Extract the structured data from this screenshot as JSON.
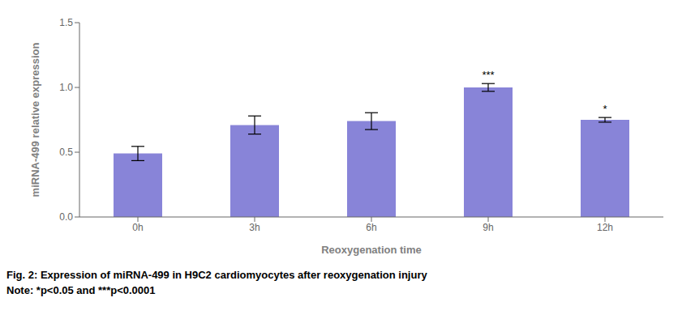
{
  "chart_data": {
    "type": "bar",
    "title": "Fig. 2: Expression of miRNA-499 in H9C2 cardiomyocytes after reoxygenation injury",
    "subtitle": "Note: *p<0.05 and ***p<0.0001",
    "categories": [
      "0h",
      "3h",
      "6h",
      "9h",
      "12h"
    ],
    "values": [
      0.49,
      0.71,
      0.74,
      1.0,
      0.75
    ],
    "errors": [
      0.055,
      0.07,
      0.065,
      0.03,
      0.018
    ],
    "annotations": [
      {
        "category": "9h",
        "text": "***"
      },
      {
        "category": "12h",
        "text": "*"
      }
    ],
    "xlabel": "Reoxygenation time",
    "ylabel": "miRNA-499 relative expression",
    "ylim": [
      0.0,
      1.5
    ],
    "yticks": [
      {
        "value": 0,
        "label": "0.0"
      },
      0.5,
      {
        "value": 1,
        "label": "1.0"
      },
      1.5
    ],
    "grid": false
  }
}
